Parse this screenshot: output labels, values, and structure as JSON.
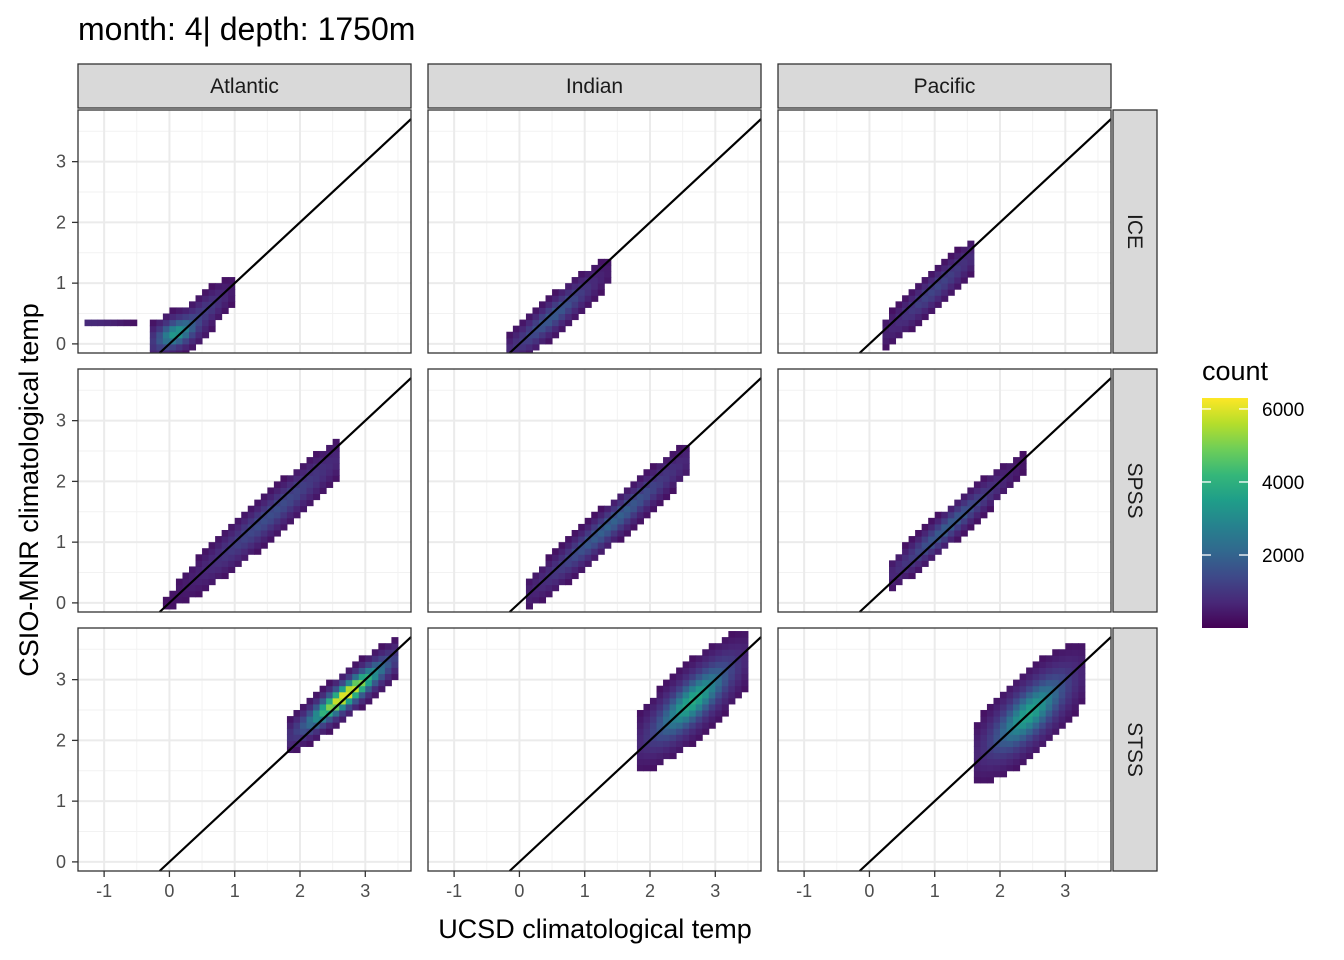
{
  "chart_data": {
    "type": "heatmap",
    "title": "month: 4| depth: 1750m",
    "xlabel": "UCSD climatological temp",
    "ylabel": "CSIO-MNR climatological temp",
    "xlim": [
      -1.4,
      3.7
    ],
    "ylim": [
      -0.15,
      3.85
    ],
    "x_ticks": [
      -1,
      0,
      1,
      2,
      3
    ],
    "y_ticks": [
      0,
      1,
      2,
      3
    ],
    "grid": true,
    "columns": [
      "Atlantic",
      "Indian",
      "Pacific"
    ],
    "rows": [
      "ICE",
      "SPSS",
      "STSS"
    ],
    "reference_line": "y = x",
    "bin_width": 0.1,
    "legend": {
      "title": "count",
      "position": "right",
      "min": 1,
      "max": 6300,
      "ticks": [
        2000,
        4000,
        6000
      ],
      "colormap": [
        "#440154",
        "#482878",
        "#3e4989",
        "#31688e",
        "#26828e",
        "#1f9e89",
        "#35b779",
        "#6ece58",
        "#b5de2b",
        "#fde725"
      ]
    },
    "panels": [
      {
        "col": "Atlantic",
        "row": "ICE",
        "blobs": [
          {
            "x0": -1.2,
            "y0": 0.33,
            "sx": 0.28,
            "sy": 0.03,
            "rho": 0,
            "span": [
              -1.25,
              -0.5
            ],
            "peak": 250
          },
          {
            "x0": 0.1,
            "y0": 0.18,
            "sx": 0.18,
            "sy": 0.14,
            "rho": 0.5,
            "span": [
              -0.3,
              0.95
            ],
            "peak": 3000
          },
          {
            "x0": 0.55,
            "y0": 0.55,
            "sx": 0.2,
            "sy": 0.2,
            "rho": 0.8,
            "span": [
              -0.3,
              0.95
            ],
            "peak": 500
          }
        ]
      },
      {
        "col": "Indian",
        "row": "ICE",
        "blobs": [
          {
            "x0": 0.5,
            "y0": 0.45,
            "sx": 0.35,
            "sy": 0.33,
            "rho": 0.93,
            "span": [
              -0.2,
              1.35
            ],
            "peak": 1200
          }
        ]
      },
      {
        "col": "Pacific",
        "row": "ICE",
        "blobs": [
          {
            "x0": 1.0,
            "y0": 0.9,
            "sx": 0.38,
            "sy": 0.38,
            "rho": 0.95,
            "span": [
              0.15,
              1.65
            ],
            "peak": 700
          }
        ]
      },
      {
        "col": "Atlantic",
        "row": "SPSS",
        "blobs": [
          {
            "x0": 1.55,
            "y0": 1.45,
            "sx": 0.55,
            "sy": 0.52,
            "rho": 0.96,
            "span": [
              -0.3,
              2.6
            ],
            "peak": 900
          }
        ]
      },
      {
        "col": "Indian",
        "row": "SPSS",
        "blobs": [
          {
            "x0": 1.4,
            "y0": 1.3,
            "sx": 0.55,
            "sy": 0.52,
            "rho": 0.97,
            "span": [
              0.05,
              2.6
            ],
            "peak": 1400
          }
        ]
      },
      {
        "col": "Pacific",
        "row": "SPSS",
        "blobs": [
          {
            "x0": 1.2,
            "y0": 1.25,
            "sx": 0.42,
            "sy": 0.4,
            "rho": 0.96,
            "span": [
              0.3,
              2.45
            ],
            "peak": 1300
          }
        ]
      },
      {
        "col": "Atlantic",
        "row": "STSS",
        "blobs": [
          {
            "x0": 2.7,
            "y0": 2.75,
            "sx": 0.35,
            "sy": 0.3,
            "rho": 0.92,
            "span": [
              1.85,
              3.5
            ],
            "peak": 6300
          }
        ]
      },
      {
        "col": "Indian",
        "row": "STSS",
        "blobs": [
          {
            "x0": 2.65,
            "y0": 2.65,
            "sx": 0.33,
            "sy": 0.35,
            "rho": 0.8,
            "span": [
              1.8,
              3.5
            ],
            "peak": 3500
          }
        ]
      },
      {
        "col": "Pacific",
        "row": "STSS",
        "blobs": [
          {
            "x0": 2.45,
            "y0": 2.45,
            "sx": 0.32,
            "sy": 0.35,
            "rho": 0.75,
            "span": [
              1.65,
              3.3
            ],
            "peak": 3300
          }
        ]
      }
    ]
  }
}
